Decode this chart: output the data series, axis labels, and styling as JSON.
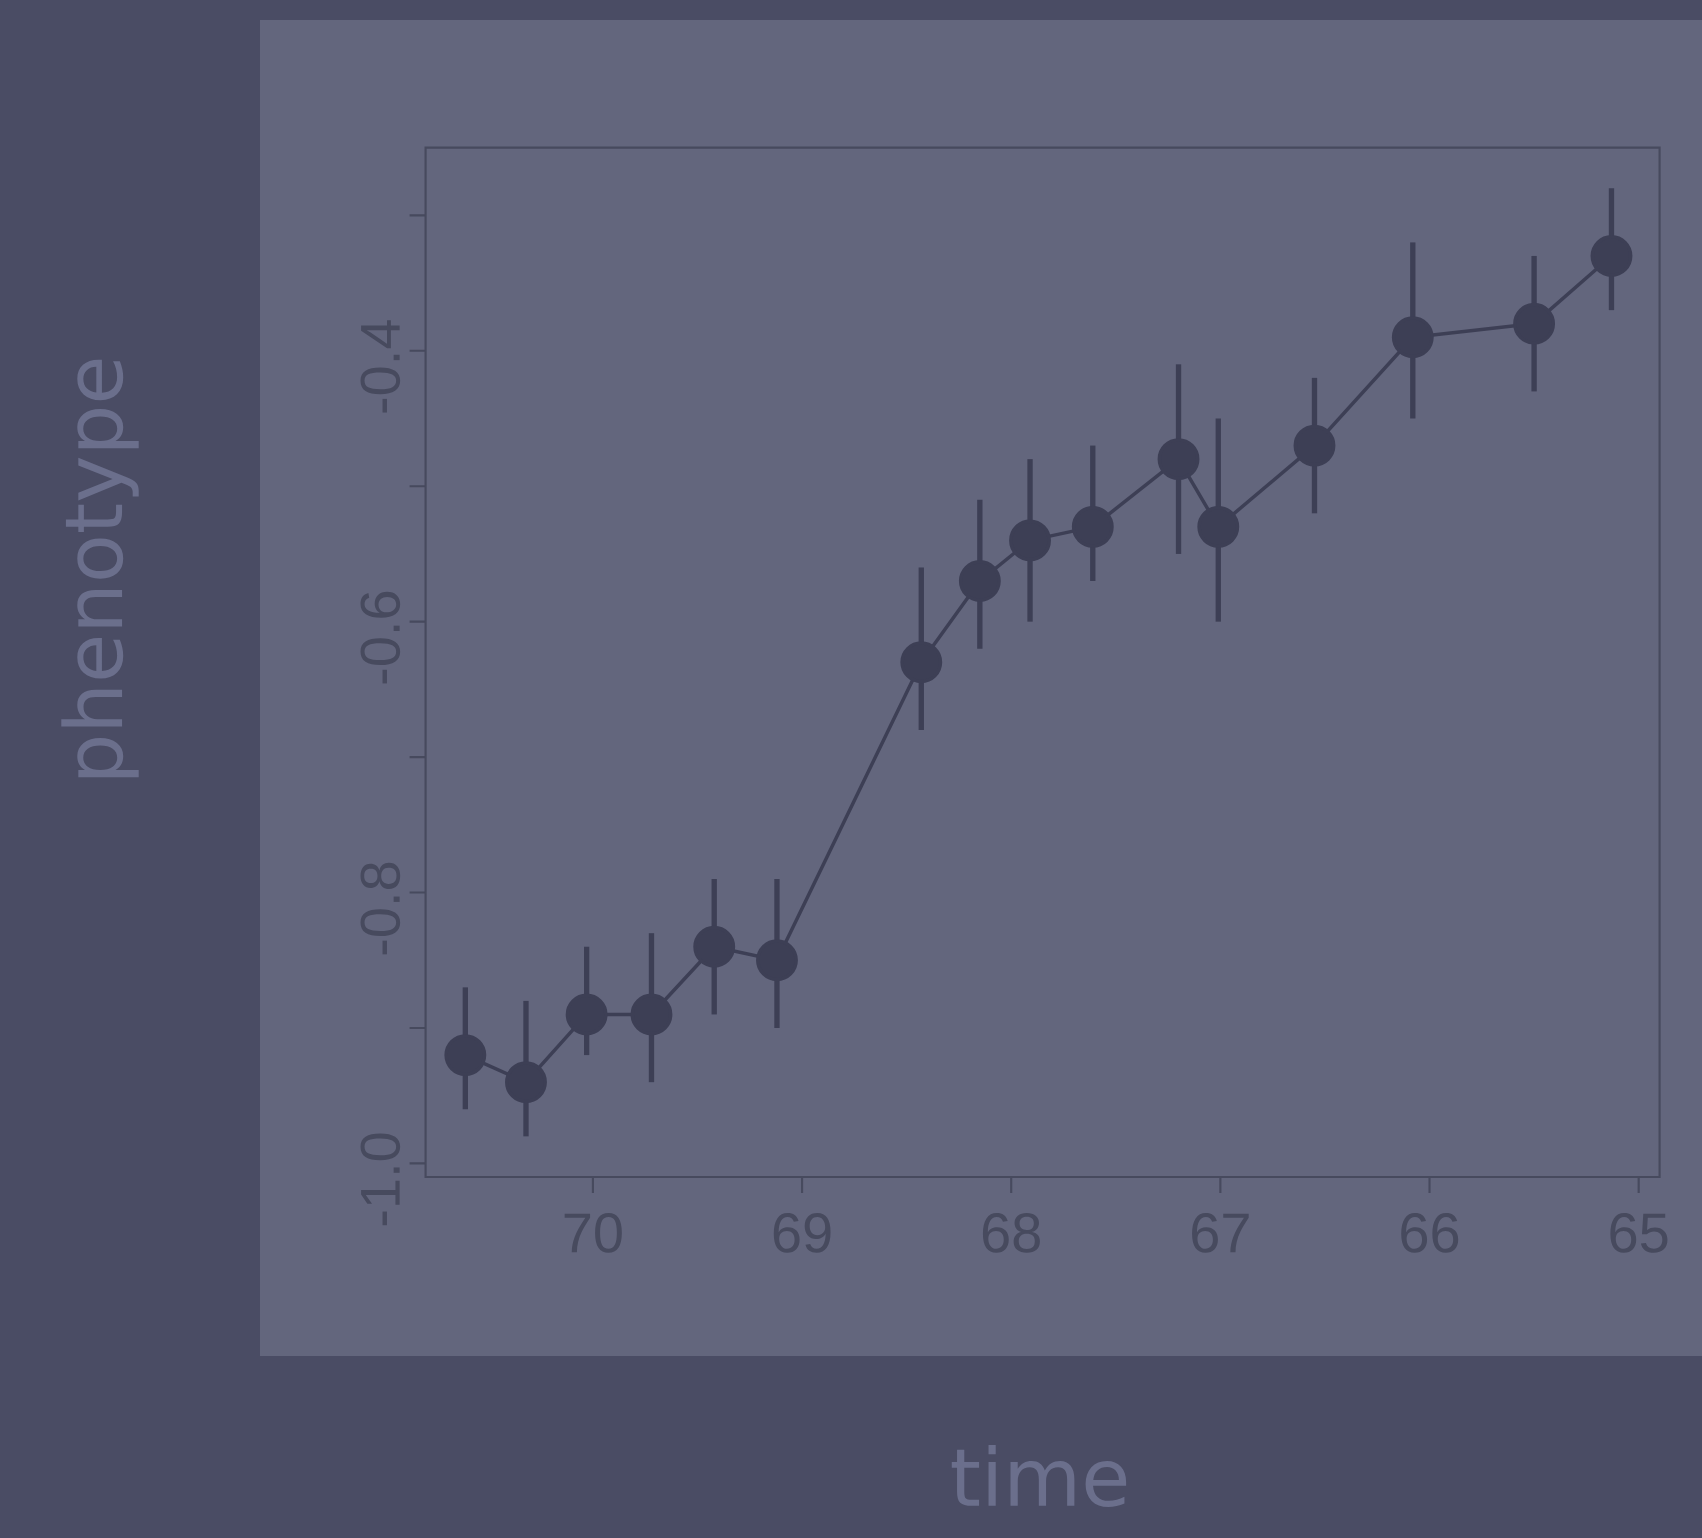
{
  "chart_data": {
    "type": "line",
    "xlabel": "time",
    "ylabel": "phenotype",
    "x": [
      70.61,
      70.32,
      70.03,
      69.72,
      69.42,
      69.12,
      68.43,
      68.15,
      67.91,
      67.61,
      67.2,
      67.01,
      66.55,
      66.08,
      65.5,
      65.13
    ],
    "series": [
      {
        "color": "#3d3f55",
        "values": [
          -0.92,
          -0.94,
          -0.89,
          -0.89,
          -0.84,
          -0.85,
          -0.63,
          -0.57,
          -0.54,
          -0.53,
          -0.48,
          -0.53,
          -0.47,
          -0.39,
          -0.38,
          -0.33
        ],
        "errors": [
          [
            -0.96,
            -0.87
          ],
          [
            -0.98,
            -0.88
          ],
          [
            -0.92,
            -0.84
          ],
          [
            -0.94,
            -0.83
          ],
          [
            -0.89,
            -0.79
          ],
          [
            -0.9,
            -0.79
          ],
          [
            -0.68,
            -0.56
          ],
          [
            -0.62,
            -0.51
          ],
          [
            -0.6,
            -0.48
          ],
          [
            -0.57,
            -0.47
          ],
          [
            -0.55,
            -0.41
          ],
          [
            -0.6,
            -0.45
          ],
          [
            -0.52,
            -0.42
          ],
          [
            -0.45,
            -0.32
          ],
          [
            -0.43,
            -0.33
          ],
          [
            -0.37,
            -0.28
          ]
        ]
      }
    ],
    "xlim": [
      70.8,
      64.9
    ],
    "ylim": [
      -1.01,
      -0.25
    ],
    "xticks": [
      70,
      69,
      68,
      67,
      66,
      65
    ],
    "yticks": [
      {
        "value": -1.0,
        "label": "-1.0"
      },
      {
        "value": -0.9,
        "label": null
      },
      {
        "value": -0.8,
        "label": "-0.8"
      },
      {
        "value": -0.7,
        "label": null
      },
      {
        "value": -0.6,
        "label": "-0.6"
      },
      {
        "value": -0.5,
        "label": null
      },
      {
        "value": -0.4,
        "label": "-0.4"
      },
      {
        "value": -0.3,
        "label": null
      }
    ],
    "marker": "circle",
    "line_style": "solid"
  }
}
